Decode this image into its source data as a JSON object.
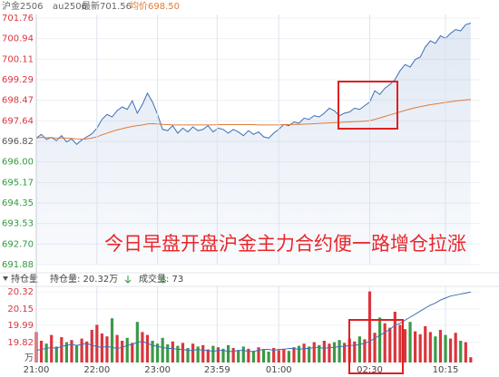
{
  "header": {
    "symbol": "沪金2506",
    "code": "au2506",
    "latest": "最新701.56",
    "average": "均价698.50"
  },
  "subheader": {
    "toggle": "持仓量",
    "open_interest": "持仓量: 20.32万",
    "volume": "成交量: 73"
  },
  "chart_data": [
    {
      "type": "line",
      "annotation": "今日早盘开盘沪金主力合约便一路增仓拉涨",
      "x": [
        0,
        5,
        10,
        15,
        20,
        25,
        30,
        35,
        40,
        45,
        50,
        55,
        60,
        65,
        70,
        75,
        80,
        85,
        90,
        95,
        100,
        105,
        110,
        115,
        120,
        125,
        130,
        135,
        140,
        145,
        150,
        155,
        160,
        165,
        170,
        175,
        180,
        185,
        190,
        195,
        200,
        205,
        210,
        215,
        220,
        225,
        230,
        235,
        240,
        245,
        250,
        255,
        260,
        265,
        270,
        275,
        280,
        285,
        290,
        295,
        300,
        305,
        310,
        315,
        320,
        325,
        330,
        335,
        340,
        345,
        350,
        355,
        360,
        365,
        370,
        375,
        380,
        385,
        390,
        395,
        400,
        405,
        410,
        415,
        420,
        425,
        430
      ],
      "xlim": [
        0,
        440
      ],
      "ylim": [
        691.88,
        701.76
      ],
      "yticks": [
        701.76,
        700.94,
        700.11,
        699.29,
        698.47,
        697.64,
        696.82,
        {
          "value": 696.0,
          "label": "696.00"
        },
        695.17,
        694.35,
        693.53,
        {
          "value": 692.7,
          "label": "692.70"
        },
        691.88
      ],
      "baseline": 696.82,
      "up_color": "#d9363e",
      "down_color": "#2e9a3e",
      "grid": true,
      "series": [
        {
          "color": "#3d6fb6",
          "fill": true,
          "values": [
            696.95,
            697.1,
            696.9,
            696.98,
            696.85,
            697.05,
            696.8,
            696.92,
            696.7,
            696.88,
            697.0,
            697.12,
            697.35,
            697.7,
            697.9,
            697.8,
            698.05,
            698.2,
            698.1,
            698.45,
            697.95,
            698.3,
            698.75,
            698.4,
            697.9,
            697.3,
            697.25,
            697.45,
            697.15,
            697.35,
            697.2,
            697.4,
            697.25,
            697.3,
            697.45,
            697.2,
            697.35,
            697.3,
            697.15,
            697.3,
            697.2,
            697.05,
            697.25,
            697.1,
            697.2,
            697.0,
            696.95,
            697.15,
            697.3,
            697.5,
            697.45,
            697.6,
            697.55,
            697.75,
            697.7,
            697.85,
            697.8,
            697.95,
            698.15,
            698.05,
            697.85,
            697.95,
            698.0,
            698.15,
            698.1,
            698.25,
            698.4,
            698.85,
            698.7,
            698.95,
            699.1,
            699.3,
            699.65,
            699.9,
            699.8,
            700.1,
            700.2,
            700.6,
            700.85,
            700.75,
            701.05,
            700.95,
            701.15,
            701.3,
            701.25,
            701.5,
            701.56
          ]
        },
        {
          "color": "#e07b39",
          "fill": false,
          "values": [
            696.95,
            696.98,
            696.97,
            696.97,
            696.95,
            696.96,
            696.95,
            696.94,
            696.92,
            696.91,
            696.92,
            696.95,
            697.0,
            697.08,
            697.15,
            697.22,
            697.28,
            697.33,
            697.38,
            697.42,
            697.45,
            697.48,
            697.52,
            697.53,
            697.52,
            697.5,
            697.49,
            697.48,
            697.48,
            697.48,
            697.48,
            697.48,
            697.48,
            697.48,
            697.48,
            697.48,
            697.49,
            697.49,
            697.49,
            697.49,
            697.49,
            697.49,
            697.49,
            697.49,
            697.48,
            697.48,
            697.48,
            697.48,
            697.48,
            697.49,
            697.49,
            697.5,
            697.5,
            697.51,
            697.52,
            697.53,
            697.54,
            697.55,
            697.56,
            697.57,
            697.58,
            697.59,
            697.6,
            697.61,
            697.62,
            697.63,
            697.65,
            697.7,
            697.76,
            697.82,
            697.88,
            697.94,
            698.0,
            698.06,
            698.12,
            698.17,
            698.21,
            698.25,
            698.29,
            698.32,
            698.35,
            698.38,
            698.41,
            698.44,
            698.46,
            698.48,
            698.5
          ]
        }
      ]
    },
    {
      "type": "bar",
      "x": [
        0,
        5,
        10,
        15,
        20,
        25,
        30,
        35,
        40,
        45,
        50,
        55,
        60,
        65,
        70,
        75,
        80,
        85,
        90,
        95,
        100,
        105,
        110,
        115,
        120,
        125,
        130,
        135,
        140,
        145,
        150,
        155,
        160,
        165,
        170,
        175,
        180,
        185,
        190,
        195,
        200,
        205,
        210,
        215,
        220,
        225,
        230,
        235,
        240,
        245,
        250,
        255,
        260,
        265,
        270,
        275,
        280,
        285,
        290,
        295,
        300,
        305,
        310,
        315,
        320,
        325,
        330,
        335,
        340,
        345,
        350,
        355,
        360,
        365,
        370,
        375,
        380,
        385,
        390,
        395,
        400,
        405,
        410,
        415,
        420,
        425,
        430
      ],
      "xlim": [
        0,
        440
      ],
      "xticks": [
        {
          "value": 0,
          "label": "21:00"
        },
        {
          "value": 60,
          "label": "22:00"
        },
        {
          "value": 120,
          "label": "23:00"
        },
        {
          "value": 179,
          "label": "23:59"
        },
        {
          "value": 240,
          "label": "01:00"
        },
        {
          "value": 330,
          "label": "02:30"
        },
        {
          "value": 405,
          "label": "10:15"
        }
      ],
      "ylim": [
        19.62,
        20.34
      ],
      "yticks": [
        20.32,
        20.15,
        19.99,
        19.82
      ],
      "y_unit": "万",
      "y2lim": [
        0,
        1000
      ],
      "up_color": "#d9363e",
      "down_color": "#3a9a46",
      "series": [
        {
          "type": "bar",
          "axis": "y2",
          "values": [
            420,
            300,
            260,
            380,
            220,
            350,
            280,
            310,
            240,
            330,
            290,
            450,
            520,
            400,
            360,
            610,
            380,
            300,
            340,
            270,
            560,
            420,
            380,
            300,
            260,
            340,
            250,
            290,
            230,
            270,
            200,
            260,
            220,
            240,
            180,
            230,
            210,
            190,
            240,
            200,
            170,
            220,
            190,
            160,
            210,
            180,
            150,
            200,
            170,
            190,
            160,
            210,
            230,
            260,
            220,
            280,
            240,
            300,
            260,
            280,
            310,
            270,
            330,
            290,
            360,
            320,
            980,
            410,
            620,
            540,
            480,
            700,
            520,
            460,
            560,
            430,
            390,
            500,
            420,
            360,
            450,
            380,
            330,
            410,
            300,
            280,
            73
          ]
        },
        {
          "type": "line",
          "color": "#3d6fb6",
          "values": [
            19.74,
            19.75,
            19.76,
            19.77,
            19.76,
            19.78,
            19.79,
            19.8,
            19.79,
            19.8,
            19.81,
            19.79,
            19.78,
            19.77,
            19.78,
            19.77,
            19.76,
            19.77,
            19.79,
            19.8,
            19.82,
            19.83,
            19.81,
            19.79,
            19.78,
            19.77,
            19.76,
            19.76,
            19.75,
            19.75,
            19.74,
            19.74,
            19.75,
            19.74,
            19.74,
            19.73,
            19.74,
            19.74,
            19.73,
            19.73,
            19.74,
            19.74,
            19.73,
            19.73,
            19.74,
            19.75,
            19.75,
            19.74,
            19.75,
            19.75,
            19.76,
            19.76,
            19.75,
            19.76,
            19.76,
            19.77,
            19.77,
            19.76,
            19.77,
            19.77,
            19.78,
            19.78,
            19.79,
            19.79,
            19.8,
            19.81,
            19.83,
            19.86,
            19.89,
            19.92,
            19.95,
            19.99,
            20.01,
            20.04,
            20.07,
            20.1,
            20.13,
            20.16,
            20.19,
            20.21,
            20.24,
            20.26,
            20.28,
            20.29,
            20.3,
            20.31,
            20.32
          ]
        }
      ]
    }
  ]
}
